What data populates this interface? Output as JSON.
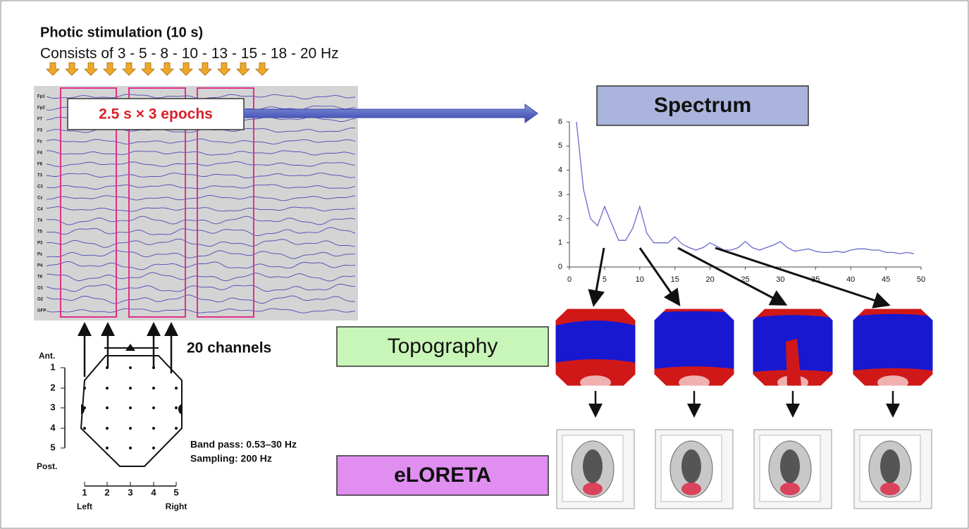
{
  "header": {
    "title": "Photic stimulation (10 s)",
    "subtitle": "Consists of 3 - 5 - 8 - 10 - 13 - 15 - 18 - 20 Hz"
  },
  "eeg": {
    "channels": [
      "Fp1",
      "Fp2",
      "F7",
      "F3",
      "Fz",
      "F4",
      "F8",
      "T3",
      "C3",
      "Cz",
      "C4",
      "T4",
      "T5",
      "P3",
      "Pz",
      "P4",
      "T6",
      "O1",
      "O2",
      "GFP"
    ],
    "epoch_label": "2.5 s × 3 epochs"
  },
  "spectrum_label": "Spectrum",
  "chart_data": {
    "type": "line",
    "color": "#6a6acd",
    "x": [
      1,
      2,
      3,
      4,
      5,
      6,
      7,
      8,
      9,
      10,
      11,
      12,
      13,
      14,
      15,
      16,
      17,
      18,
      19,
      20,
      21,
      22,
      23,
      24,
      25,
      26,
      27,
      28,
      29,
      30,
      31,
      32,
      33,
      34,
      35,
      36,
      37,
      38,
      39,
      40,
      41,
      42,
      43,
      44,
      45,
      46,
      47,
      48,
      49
    ],
    "values": [
      6,
      3.2,
      2,
      1.7,
      2.5,
      1.8,
      1.1,
      1.1,
      1.6,
      2.5,
      1.4,
      1,
      1,
      1,
      1.25,
      0.95,
      0.8,
      0.7,
      0.8,
      1,
      0.85,
      0.7,
      0.7,
      0.8,
      1.05,
      0.8,
      0.7,
      0.8,
      0.9,
      1.05,
      0.8,
      0.65,
      0.7,
      0.75,
      0.65,
      0.6,
      0.6,
      0.65,
      0.6,
      0.7,
      0.75,
      0.75,
      0.7,
      0.7,
      0.6,
      0.6,
      0.55,
      0.6,
      0.55
    ],
    "xlim": [
      0,
      50
    ],
    "ylim": [
      0,
      6
    ],
    "xticks": [
      0,
      5,
      10,
      15,
      20,
      25,
      30,
      35,
      40,
      45,
      50
    ],
    "yticks": [
      0,
      1,
      2,
      3,
      4,
      5,
      6
    ]
  },
  "topography_label": "Topography",
  "eloreta_label": "eLORETA",
  "montage": {
    "channels_label": "20 channels",
    "anterior": "Ant.",
    "posterior": "Post.",
    "rows": [
      "1",
      "2",
      "3",
      "4",
      "5"
    ],
    "columns": [
      "1",
      "2",
      "3",
      "4",
      "5"
    ],
    "left": "Left",
    "right": "Right"
  },
  "recording": {
    "band_pass": "Band pass: 0.53–30 Hz",
    "sampling": "Sampling: 200 Hz"
  }
}
